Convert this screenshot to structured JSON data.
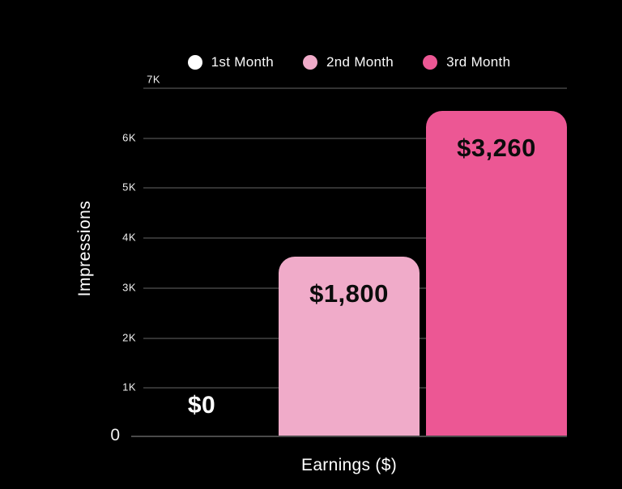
{
  "chart_data": {
    "type": "bar",
    "title": "",
    "xlabel": "Earnings ($)",
    "ylabel": "Impressions",
    "ylim": [
      0,
      7000
    ],
    "grid": true,
    "categories": [
      "1st Month",
      "2nd Month",
      "3rd Month"
    ],
    "series": [
      {
        "name": "Impressions",
        "values": [
          0,
          3600,
          6530
        ]
      }
    ],
    "bar_labels": [
      "$0",
      "$1,800",
      "$3,260"
    ],
    "yticks": [
      "7K",
      "6K",
      "5K",
      "4K",
      "3K",
      "2K",
      "1K",
      "0"
    ],
    "legend": {
      "position": "top",
      "entries": [
        {
          "label": "1st Month",
          "color": "#FFFFFF"
        },
        {
          "label": "2nd Month",
          "color": "#F0ABC9"
        },
        {
          "label": "3rd Month",
          "color": "#EC5794"
        }
      ]
    },
    "colors": {
      "background": "#000000",
      "bar_1st_month": "#FFFFFF",
      "bar_2nd_month": "#F0ABC9",
      "bar_3rd_month": "#EC5794",
      "bar_value_text": "#0C0C0C",
      "zero_value_text": "#FFFFFF",
      "axis_text": "#FFFFFF",
      "gridline": "#333333",
      "baseline": "#4A4A4A"
    }
  }
}
